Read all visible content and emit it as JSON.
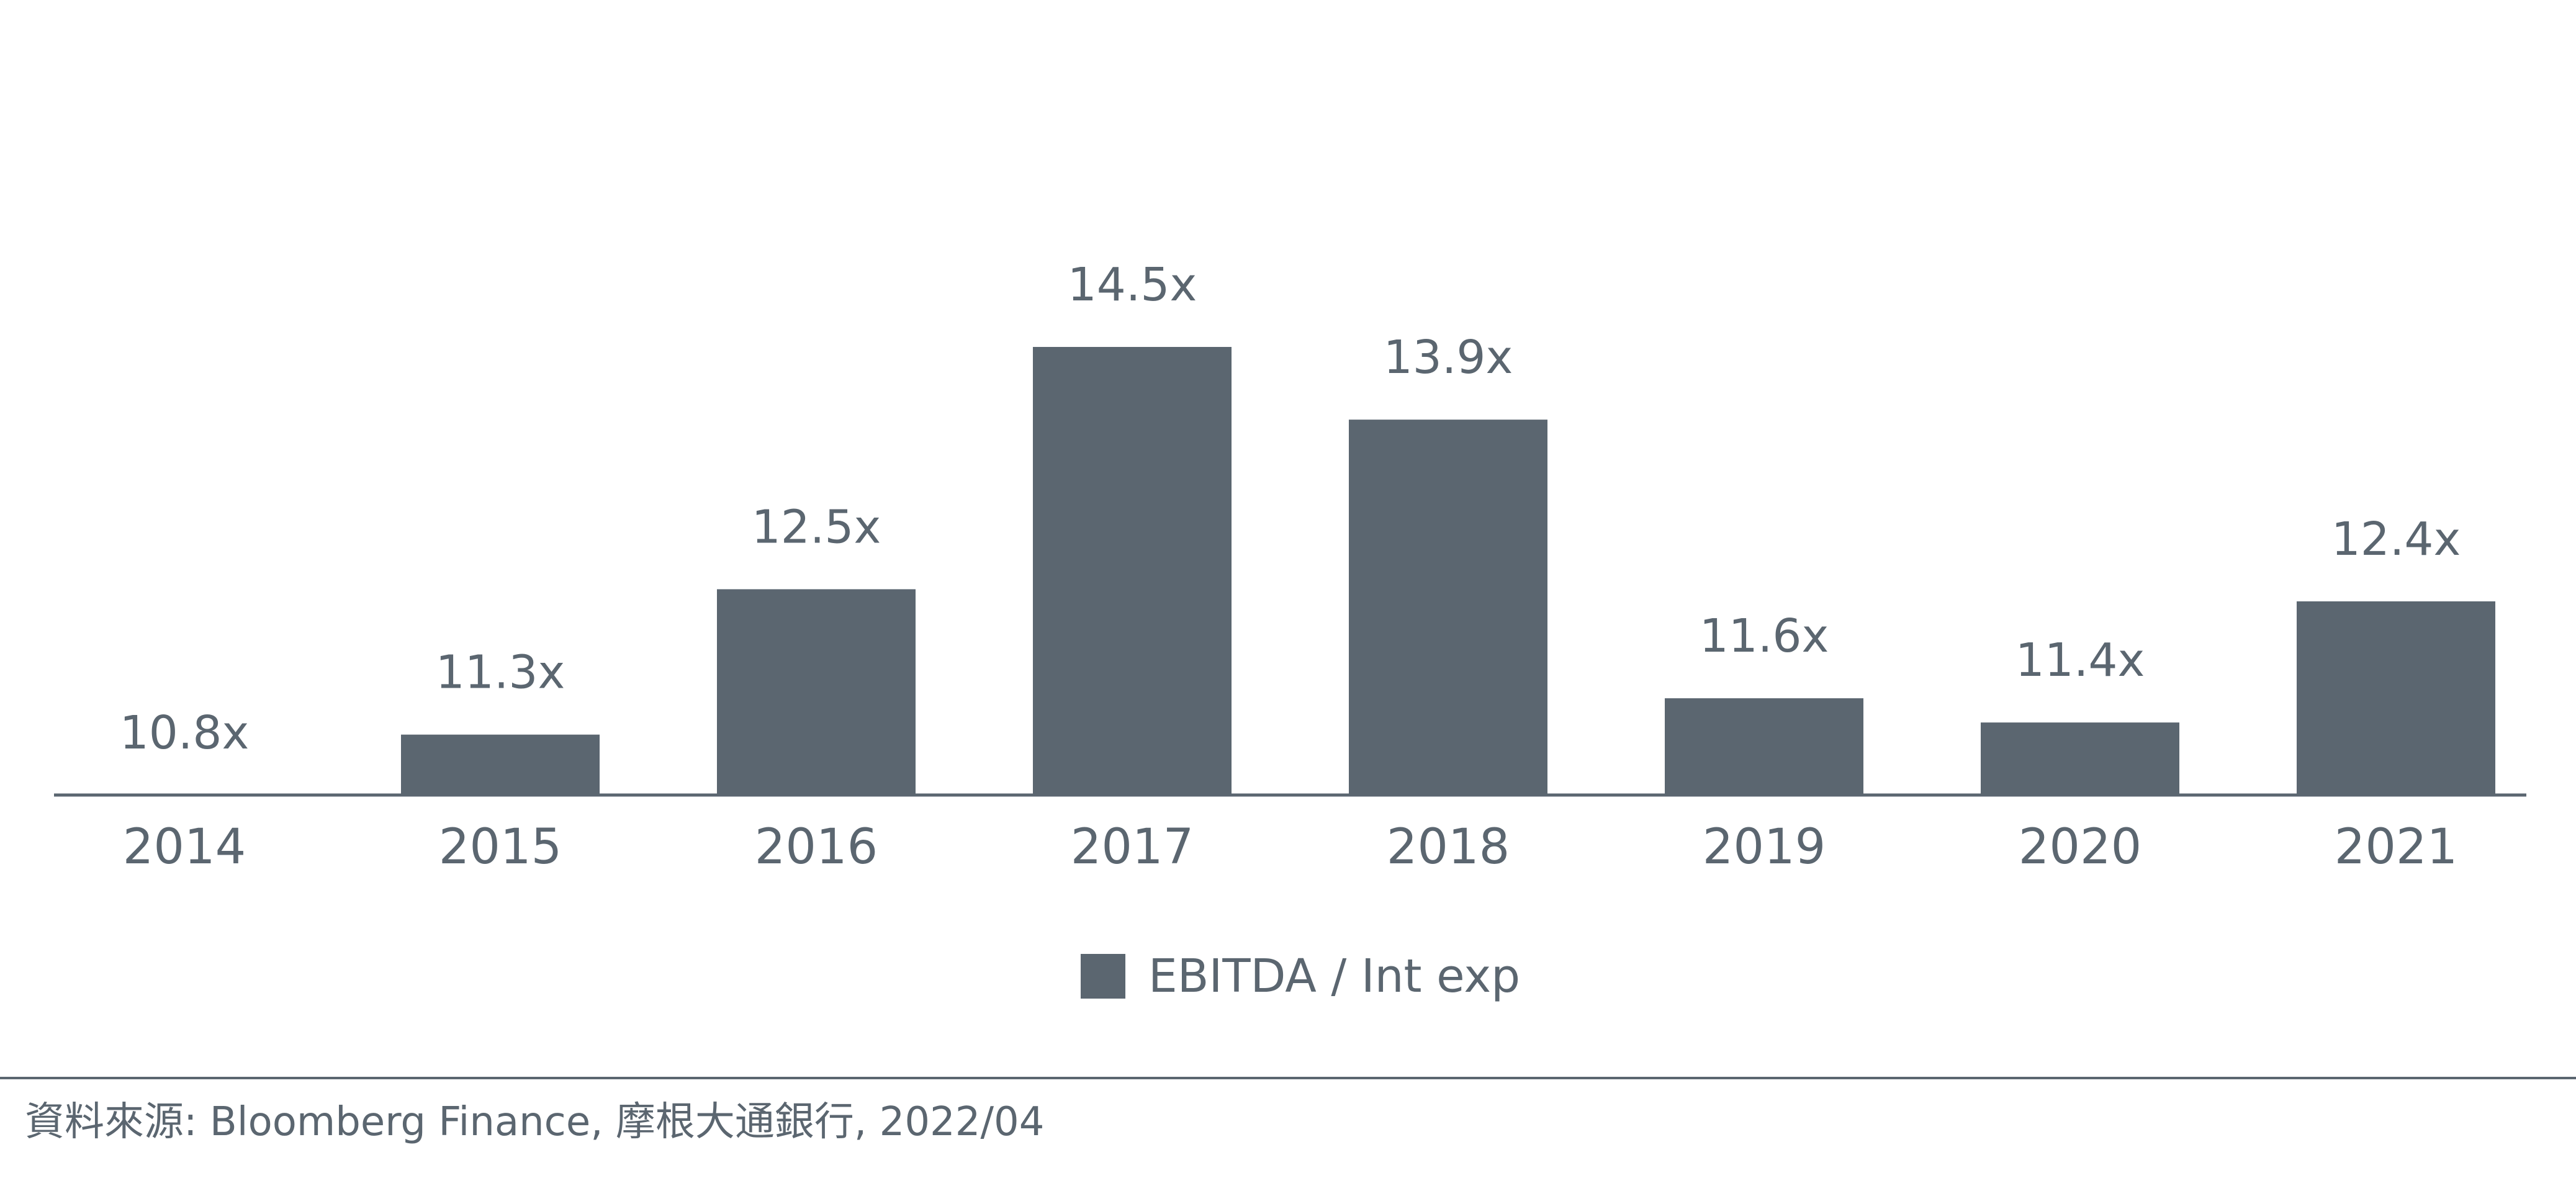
{
  "chart_data": {
    "type": "bar",
    "categories": [
      "2014",
      "2015",
      "2016",
      "2017",
      "2018",
      "2019",
      "2020",
      "2021"
    ],
    "series": [
      {
        "name": "EBITDA / Int exp",
        "values": [
          10.8,
          11.3,
          12.5,
          14.5,
          13.9,
          11.6,
          11.4,
          12.4
        ],
        "data_labels": [
          "10.8x",
          "11.3x",
          "12.5x",
          "14.5x",
          "13.9x",
          "11.6x",
          "11.4x",
          "12.4x"
        ]
      }
    ],
    "legend": {
      "label": "EBITDA / Int exp",
      "position": "bottom"
    },
    "grid": false,
    "colors": {
      "bar": "#5b6670",
      "text": "#5b6670",
      "axis": "#5b6670"
    }
  },
  "source": "資料來源: Bloomberg Finance, 摩根大通銀行, 2022/04"
}
